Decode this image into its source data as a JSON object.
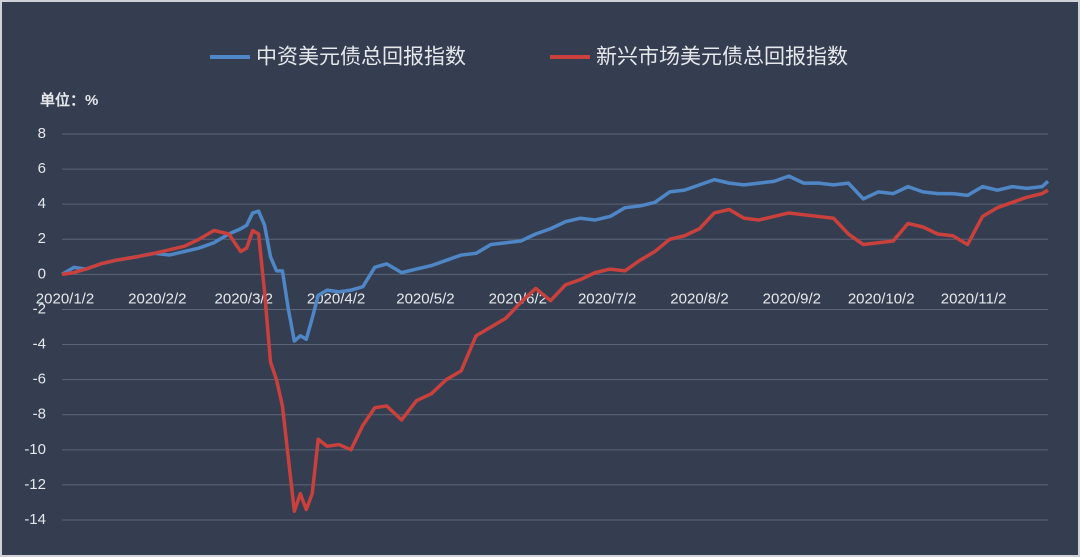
{
  "chart_data": {
    "type": "line",
    "unit_label": "单位：%",
    "x": [
      "2020/1/2",
      "2020/1/6",
      "2020/1/10",
      "2020/1/15",
      "2020/1/20",
      "2020/1/27",
      "2020/2/2",
      "2020/2/7",
      "2020/2/12",
      "2020/2/17",
      "2020/2/22",
      "2020/2/27",
      "2020/3/2",
      "2020/3/4",
      "2020/3/6",
      "2020/3/8",
      "2020/3/10",
      "2020/3/12",
      "2020/3/14",
      "2020/3/16",
      "2020/3/18",
      "2020/3/20",
      "2020/3/22",
      "2020/3/24",
      "2020/3/26",
      "2020/3/28",
      "2020/3/31",
      "2020/4/4",
      "2020/4/8",
      "2020/4/12",
      "2020/4/16",
      "2020/4/20",
      "2020/4/25",
      "2020/4/30",
      "2020/5/5",
      "2020/5/10",
      "2020/5/15",
      "2020/5/20",
      "2020/5/25",
      "2020/5/30",
      "2020/6/4",
      "2020/6/9",
      "2020/6/14",
      "2020/6/19",
      "2020/6/24",
      "2020/6/29",
      "2020/7/4",
      "2020/7/9",
      "2020/7/14",
      "2020/7/19",
      "2020/7/24",
      "2020/7/29",
      "2020/8/3",
      "2020/8/8",
      "2020/8/13",
      "2020/8/18",
      "2020/8/23",
      "2020/8/28",
      "2020/9/2",
      "2020/9/7",
      "2020/9/12",
      "2020/9/17",
      "2020/9/22",
      "2020/9/27",
      "2020/10/2",
      "2020/10/7",
      "2020/10/12",
      "2020/10/17",
      "2020/10/22",
      "2020/10/27",
      "2020/11/1",
      "2020/11/6",
      "2020/11/11",
      "2020/11/16",
      "2020/11/21",
      "2020/11/26",
      "2020/11/28"
    ],
    "series": [
      {
        "name": "中资美元债总回报指数",
        "color": "#4f86c6",
        "values": [
          0,
          0.4,
          0.3,
          0.6,
          0.8,
          1.0,
          1.2,
          1.1,
          1.3,
          1.5,
          1.8,
          2.3,
          2.6,
          2.8,
          3.5,
          3.6,
          2.8,
          1.0,
          0.2,
          0.2,
          -2.0,
          -3.8,
          -3.5,
          -3.7,
          -2.5,
          -1.2,
          -0.9,
          -1.0,
          -0.9,
          -0.7,
          0.4,
          0.6,
          0.1,
          0.3,
          0.5,
          0.8,
          1.1,
          1.2,
          1.7,
          1.8,
          1.9,
          2.3,
          2.6,
          3.0,
          3.2,
          3.1,
          3.3,
          3.8,
          3.9,
          4.1,
          4.7,
          4.8,
          5.1,
          5.4,
          5.2,
          5.1,
          5.2,
          5.3,
          5.6,
          5.2,
          5.2,
          5.1,
          5.2,
          4.3,
          4.7,
          4.6,
          5.0,
          4.7,
          4.6,
          4.6,
          4.5,
          5.0,
          4.8,
          5.0,
          4.9,
          5.0,
          5.3
        ]
      },
      {
        "name": "新兴市场美元债总回报指数",
        "color": "#c9403d",
        "values": [
          0,
          0.1,
          0.3,
          0.6,
          0.8,
          1.0,
          1.2,
          1.4,
          1.6,
          2.0,
          2.5,
          2.3,
          1.3,
          1.5,
          2.5,
          2.3,
          -1.0,
          -5.0,
          -6.0,
          -7.5,
          -10.5,
          -13.5,
          -12.5,
          -13.4,
          -12.5,
          -9.4,
          -9.8,
          -9.7,
          -10.0,
          -8.6,
          -7.6,
          -7.5,
          -8.3,
          -7.2,
          -6.8,
          -6.0,
          -5.5,
          -3.5,
          -3.0,
          -2.5,
          -1.6,
          -0.8,
          -1.5,
          -0.6,
          -0.3,
          0.1,
          0.3,
          0.2,
          0.8,
          1.3,
          2.0,
          2.2,
          2.6,
          3.5,
          3.7,
          3.2,
          3.1,
          3.3,
          3.5,
          3.4,
          3.3,
          3.2,
          2.3,
          1.7,
          1.8,
          1.9,
          2.9,
          2.7,
          2.3,
          2.2,
          1.7,
          3.3,
          3.8,
          4.1,
          4.4,
          4.6,
          4.8
        ]
      }
    ],
    "xlim": [
      "2020/1/2",
      "2020/11/28"
    ],
    "xticks": [
      "2020/1/2",
      "2020/2/2",
      "2020/3/2",
      "2020/4/2",
      "2020/5/2",
      "2020/6/2",
      "2020/7/2",
      "2020/8/2",
      "2020/9/2",
      "2020/10/2",
      "2020/11/2"
    ],
    "ylim": [
      -14,
      8
    ],
    "yticks": [
      -14,
      -12,
      -10,
      -8,
      -6,
      -4,
      -2,
      0,
      2,
      4,
      6,
      8
    ],
    "grid": true,
    "legend": "top"
  }
}
